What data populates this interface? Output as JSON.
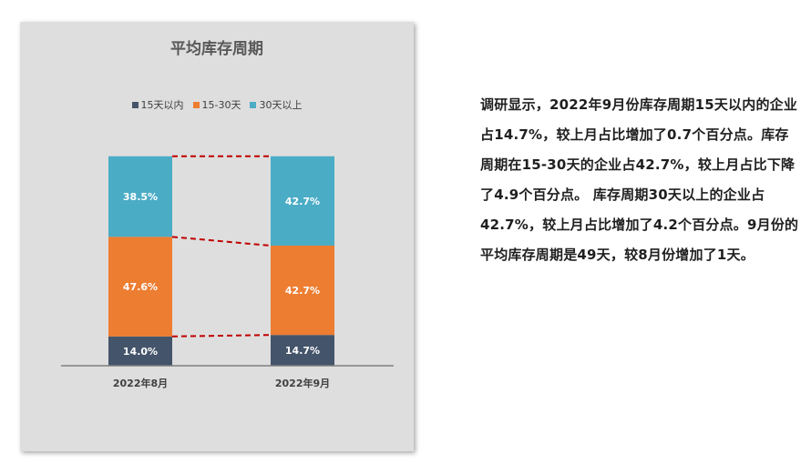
{
  "chart_data": {
    "type": "bar",
    "stacked": true,
    "title": "平均库存周期",
    "categories": [
      "2022年8月",
      "2022年9月"
    ],
    "series": [
      {
        "name": "15天以内",
        "values": [
          14.0,
          14.7
        ],
        "labels": [
          "14.0%",
          "14.7%"
        ],
        "color": "#44546a"
      },
      {
        "name": "15-30天",
        "values": [
          47.6,
          42.7
        ],
        "labels": [
          "47.6%",
          "42.7%"
        ],
        "color": "#ed7d31"
      },
      {
        "name": "30天以上",
        "values": [
          38.5,
          42.7
        ],
        "labels": [
          "38.5%",
          "42.7%"
        ],
        "color": "#4bacc6"
      }
    ],
    "ylim": [
      0,
      100
    ],
    "legend_position": "top",
    "connector_line_color": "#c00000",
    "grid": false
  },
  "text": {
    "paragraph": "调研显示，2022年9月份库存周期15天以内的企业占14.7%，较上月占比增加了0.7个百分点。库存周期在15-30天的企业占42.7%，较上月占比下降了4.9个百分点。 库存周期30天以上的企业占42.7%，较上月占比增加了4.2个百分点。9月份的平均库存周期是49天，较8月份增加了1天。"
  }
}
